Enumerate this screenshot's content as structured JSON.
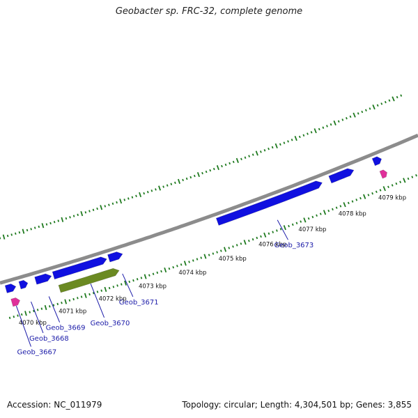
{
  "title": "Geobacter sp. FRC-32, complete genome",
  "footer": {
    "accession": "Accession: NC_011979",
    "summary": "Topology: circular; Length: 4,304,501 bp; Genes: 3,855"
  },
  "colors": {
    "backbone": "#8c8c8c",
    "cds_forward": "#1010e0",
    "cds_reverse_highlight": "#6b8a22",
    "rna": "#e0309a",
    "tick": "#1f7a1f",
    "label": "#1a1aa8"
  },
  "scale": {
    "unit": "kbp",
    "range_kbp": [
      4069.6,
      4080.2
    ]
  },
  "ticks": [
    {
      "kbp": 4070,
      "label": "4070 kbp"
    },
    {
      "kbp": 4071,
      "label": "4071 kbp"
    },
    {
      "kbp": 4072,
      "label": "4072 kbp"
    },
    {
      "kbp": 4073,
      "label": "4073 kbp"
    },
    {
      "kbp": 4074,
      "label": "4074 kbp"
    },
    {
      "kbp": 4075,
      "label": "4075 kbp"
    },
    {
      "kbp": 4076,
      "label": "4076 kbp"
    },
    {
      "kbp": 4077,
      "label": "4077 kbp"
    },
    {
      "kbp": 4078,
      "label": "4078 kbp"
    },
    {
      "kbp": 4079,
      "label": "4079 kbp"
    }
  ],
  "features": [
    {
      "type": "rna",
      "strand": "reverse",
      "start_kbp": 4069.75,
      "end_kbp": 4069.95
    },
    {
      "type": "cds",
      "strand": "forward",
      "start_kbp": 4069.7,
      "end_kbp": 4069.95
    },
    {
      "type": "cds",
      "strand": "forward",
      "start_kbp": 4070.05,
      "end_kbp": 4070.25
    },
    {
      "type": "cds",
      "strand": "forward",
      "start_kbp": 4070.45,
      "end_kbp": 4070.85
    },
    {
      "type": "cds",
      "strand": "forward",
      "start_kbp": 4070.9,
      "end_kbp": 4072.25
    },
    {
      "type": "cds_highlight",
      "strand": "reverse",
      "start_kbp": 4070.95,
      "end_kbp": 4072.45
    },
    {
      "type": "cds",
      "strand": "forward",
      "start_kbp": 4072.3,
      "end_kbp": 4072.65
    },
    {
      "type": "cds",
      "strand": "forward",
      "start_kbp": 4075.05,
      "end_kbp": 4077.7
    },
    {
      "type": "cds",
      "strand": "forward",
      "start_kbp": 4077.9,
      "end_kbp": 4078.5
    },
    {
      "type": "cds",
      "strand": "forward",
      "start_kbp": 4079.0,
      "end_kbp": 4079.2
    },
    {
      "type": "rna",
      "strand": "reverse",
      "start_kbp": 4079.05,
      "end_kbp": 4079.2
    }
  ],
  "gene_labels": [
    {
      "name": "Geob_3667",
      "kbp": 4069.83
    },
    {
      "name": "Geob_3668",
      "kbp": 4070.2
    },
    {
      "name": "Geob_3669",
      "kbp": 4070.65
    },
    {
      "name": "Geob_3670",
      "kbp": 4071.7
    },
    {
      "name": "Geob_3671",
      "kbp": 4072.5
    },
    {
      "name": "Geob_3673",
      "kbp": 4076.4
    }
  ]
}
